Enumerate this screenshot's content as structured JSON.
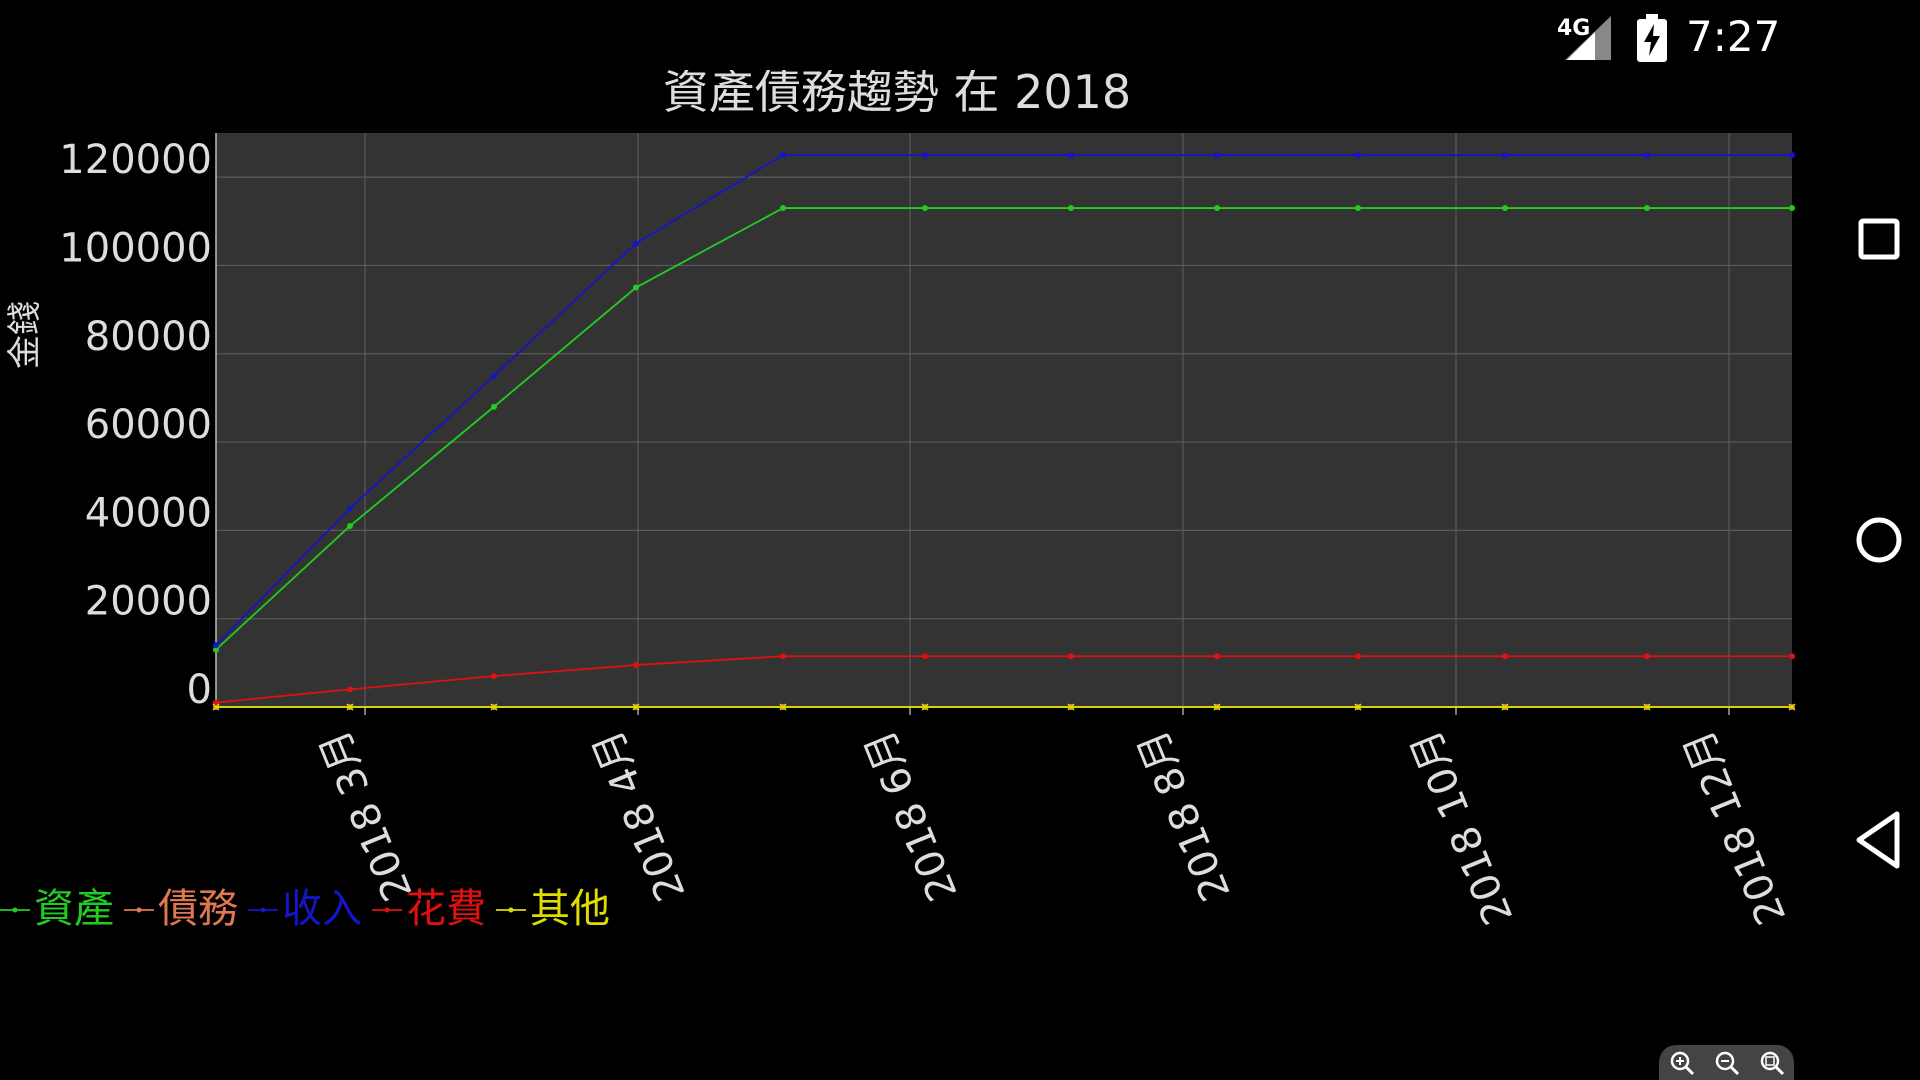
{
  "status_bar": {
    "network": "4G",
    "time": "7:27"
  },
  "chart_data": {
    "type": "line",
    "title": "資產債務趨勢 在 2018",
    "ylabel": "金錢",
    "xlabel": "",
    "ylim": [
      0,
      130000
    ],
    "yticks": [
      "0",
      "20000",
      "40000",
      "60000",
      "80000",
      "100000",
      "120000"
    ],
    "x_axis_labels": [
      "2018 3月",
      "2018 4月",
      "2018 6月",
      "2018 8月",
      "2018 10月",
      "2018 12月"
    ],
    "grid": true,
    "legend_position": "bottom-left",
    "series": [
      {
        "name": "資產",
        "color": "#22cc22",
        "marker": "dot",
        "values": [
          13000,
          41000,
          68000,
          95000,
          113000,
          113000,
          113000,
          113000,
          113000,
          113000,
          113000,
          113000
        ]
      },
      {
        "name": "債務",
        "color": "#e07850",
        "marker": "dash",
        "values": [
          0,
          0,
          0,
          0,
          0,
          0,
          0,
          0,
          0,
          0,
          0,
          0
        ]
      },
      {
        "name": "收入",
        "color": "#1515c8",
        "marker": "dot",
        "values": [
          14000,
          45000,
          75000,
          105000,
          125000,
          125000,
          125000,
          125000,
          125000,
          125000,
          125000,
          125000
        ]
      },
      {
        "name": "花費",
        "color": "#e01010",
        "marker": "dot",
        "values": [
          1000,
          4000,
          7000,
          9500,
          11500,
          11500,
          11500,
          11500,
          11500,
          11500,
          11500,
          11500
        ]
      },
      {
        "name": "其他",
        "color": "#dddd00",
        "marker": "x",
        "values": [
          0,
          0,
          0,
          0,
          0,
          0,
          0,
          0,
          0,
          0,
          0,
          0
        ]
      }
    ]
  }
}
